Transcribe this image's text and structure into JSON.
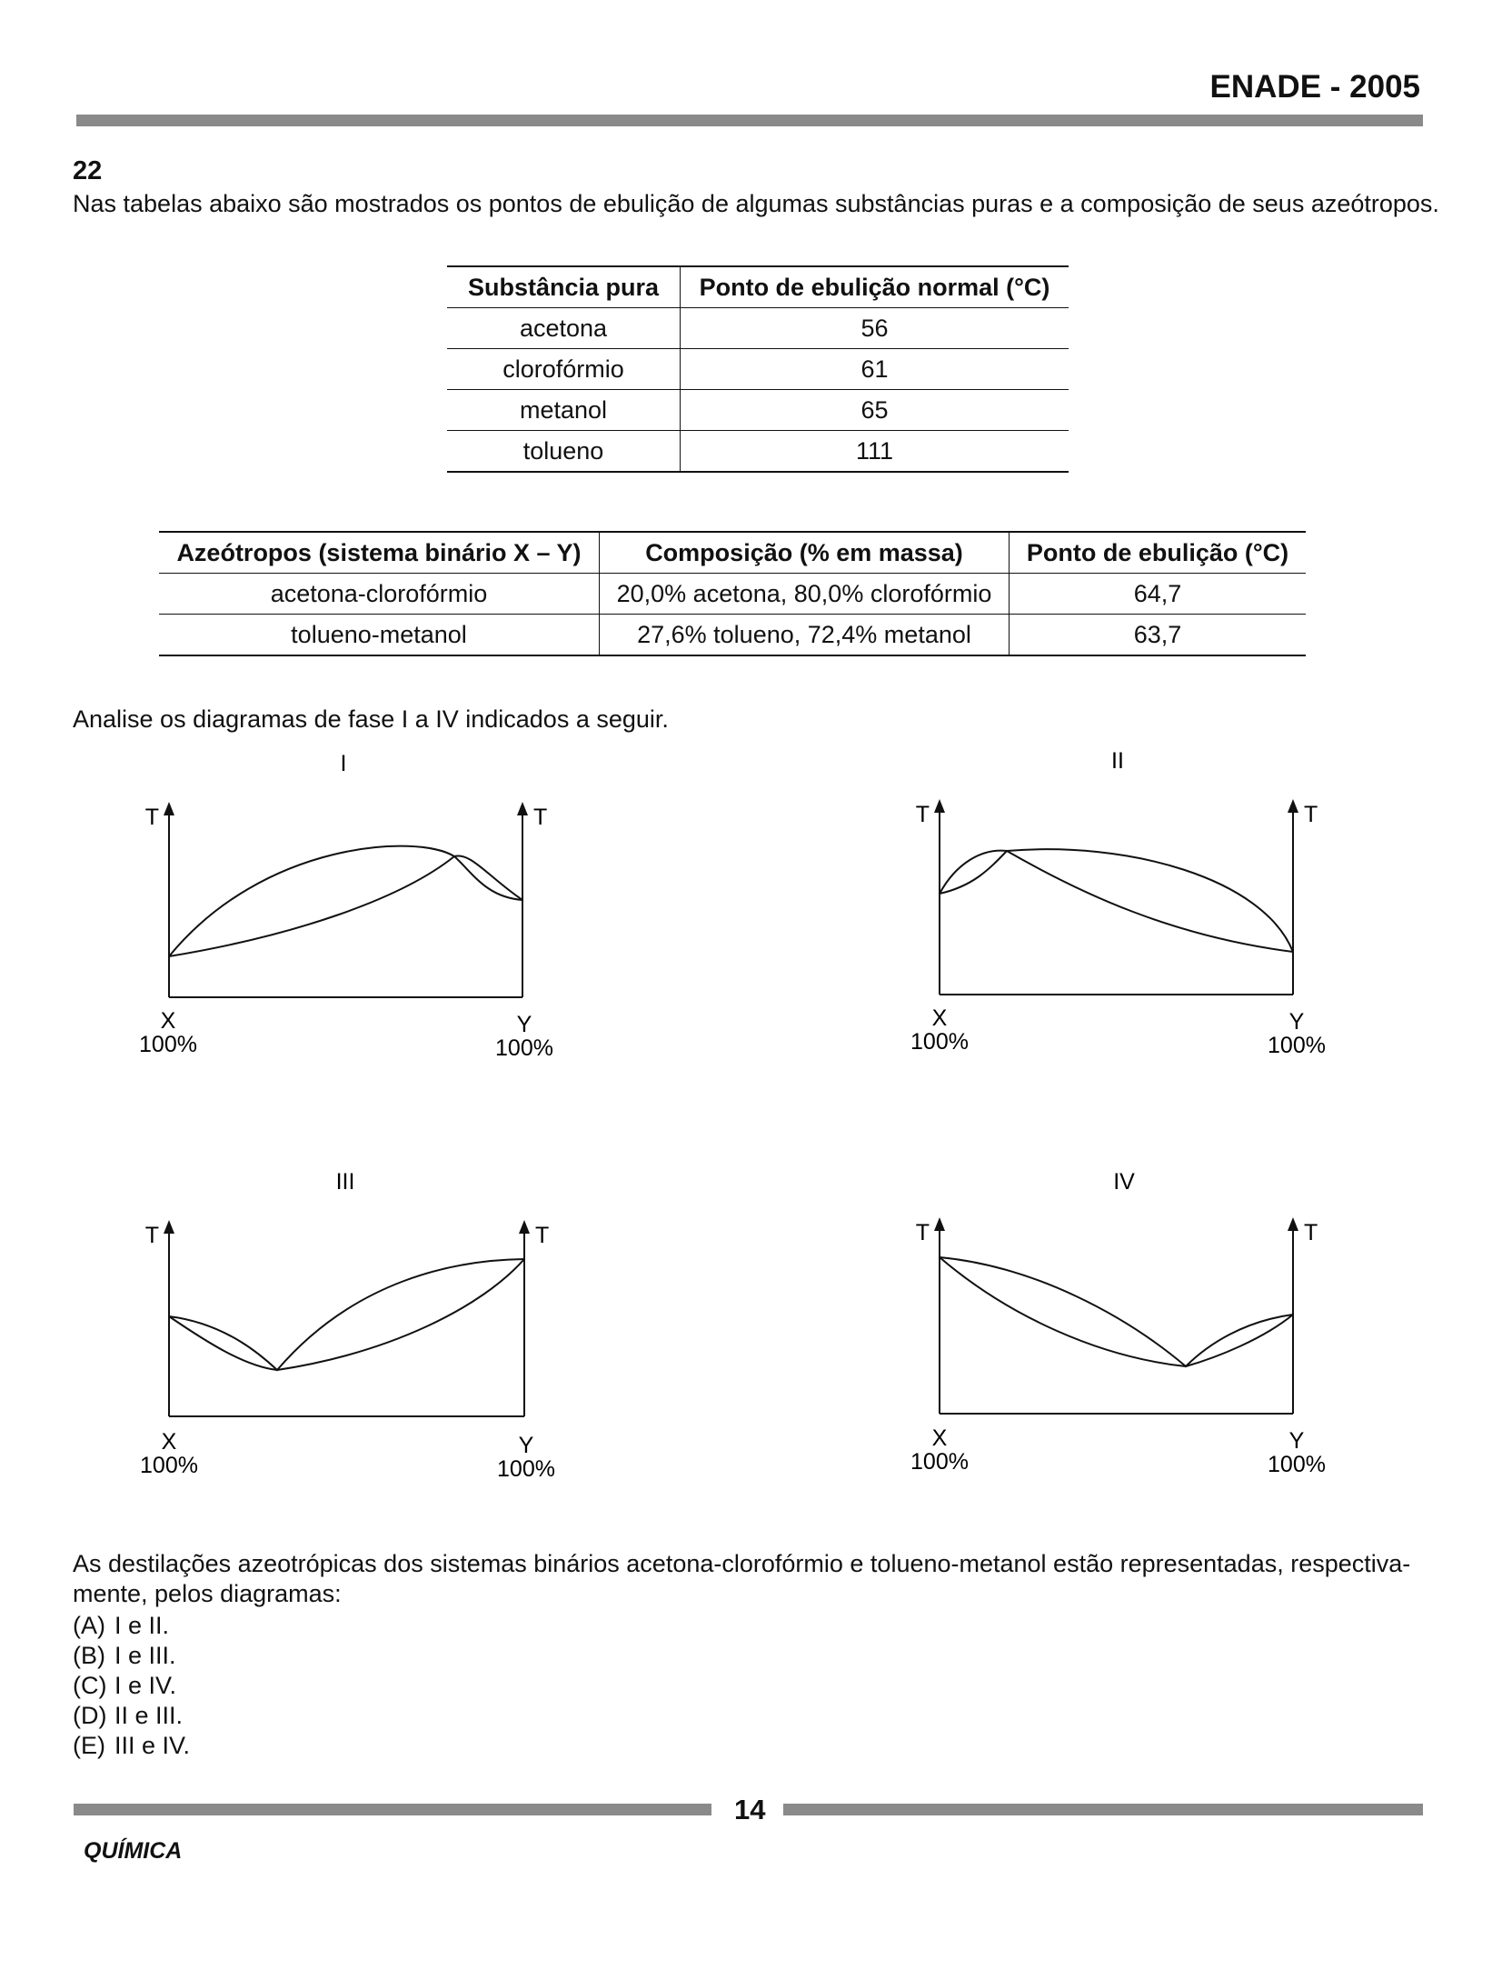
{
  "header": {
    "title": "ENADE - 2005"
  },
  "question": {
    "number": "22",
    "intro": "Nas tabelas abaixo são mostrados os pontos de ebulição de algumas substâncias puras e a composição de seus azeótropos."
  },
  "table_pure": {
    "headers": [
      "Substância pura",
      "Ponto de ebulição normal (°C)"
    ],
    "rows": [
      [
        "acetona",
        "56"
      ],
      [
        "clorofórmio",
        "61"
      ],
      [
        "metanol",
        "65"
      ],
      [
        "tolueno",
        "111"
      ]
    ]
  },
  "table_azeo": {
    "headers": [
      "Azeótropos (sistema binário X – Y)",
      "Composição (% em massa)",
      "Ponto de ebulição (°C)"
    ],
    "rows": [
      [
        "acetona-clorofórmio",
        "20,0% acetona, 80,0% clorofórmio",
        "64,7"
      ],
      [
        "tolueno-metanol",
        "27,6% tolueno, 72,4% metanol",
        "63,7"
      ]
    ]
  },
  "diagrams_intro": "Analise os diagramas de fase I a IV indicados a seguir.",
  "diagrams": {
    "axis_label": "T",
    "x_label": "X",
    "y_label": "Y",
    "pct_label": "100%",
    "items": [
      {
        "label": "I"
      },
      {
        "label": "II"
      },
      {
        "label": "III"
      },
      {
        "label": "IV"
      }
    ]
  },
  "closing": "As destilações azeotrópicas dos sistemas binários acetona-clorofórmio e tolueno-metanol estão representadas, respectiva-mente, pelos diagramas:",
  "options": [
    {
      "letter": "(A)",
      "text": "I e II."
    },
    {
      "letter": "(B)",
      "text": "I e III."
    },
    {
      "letter": "(C)",
      "text": "I e IV."
    },
    {
      "letter": "(D)",
      "text": "II e III."
    },
    {
      "letter": "(E)",
      "text": "III e IV."
    }
  ],
  "footer": {
    "page": "14",
    "subject": "QUÍMICA"
  }
}
